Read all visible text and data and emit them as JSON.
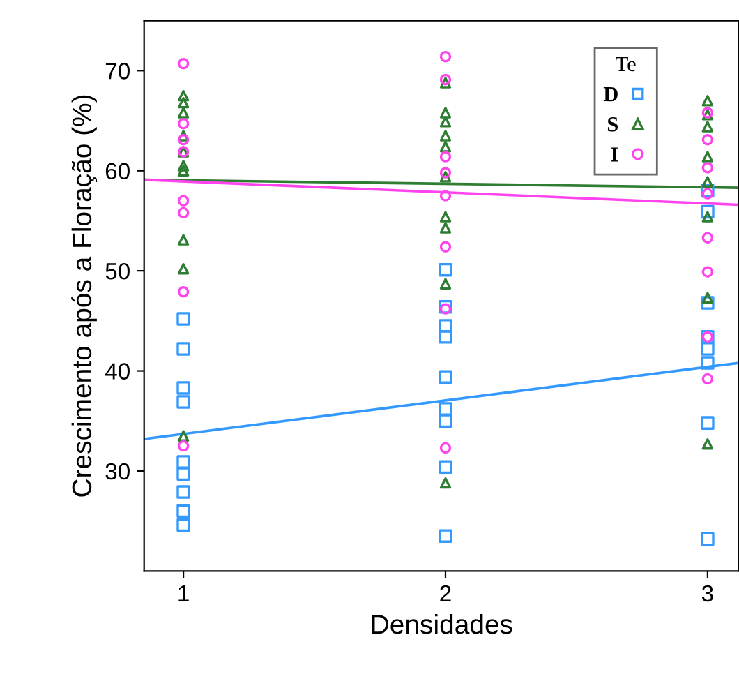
{
  "chart_data": {
    "type": "scatter",
    "xlabel": "Densidades",
    "ylabel": "Crescimento após a Floração (%)",
    "legend_title": "Te",
    "legend": "top right",
    "grid": false,
    "xlim": [
      0.85,
      3.12
    ],
    "xticks": [
      1,
      2,
      3
    ],
    "ylim": [
      20,
      75
    ],
    "yticks": [
      30,
      40,
      50,
      60,
      70
    ],
    "series": [
      {
        "name": "D",
        "marker": "square",
        "color": "#3399ff",
        "x": [
          1,
          1,
          1,
          1,
          1,
          1,
          1,
          1,
          1,
          2,
          2,
          2,
          2,
          2,
          2,
          2,
          2,
          2,
          3,
          3,
          3,
          3,
          3,
          3,
          3,
          3
        ],
        "values": [
          45.2,
          42.2,
          38.3,
          36.9,
          30.9,
          29.7,
          27.9,
          26.0,
          24.6,
          50.1,
          46.4,
          44.5,
          43.4,
          39.4,
          36.2,
          35.0,
          30.4,
          23.5,
          58.0,
          55.9,
          46.8,
          43.4,
          42.2,
          40.8,
          34.8,
          23.2
        ]
      },
      {
        "name": "S",
        "marker": "triangle",
        "color": "#2e7d32",
        "x": [
          1,
          1,
          1,
          1,
          1,
          1,
          1,
          1,
          1,
          1,
          2,
          2,
          2,
          2,
          2,
          2,
          2,
          2,
          2,
          2,
          3,
          3,
          3,
          3,
          3,
          3,
          3,
          3
        ],
        "values": [
          67.5,
          66.8,
          65.8,
          63.5,
          61.9,
          60.5,
          60.0,
          53.1,
          50.2,
          33.5,
          68.8,
          65.8,
          64.9,
          63.5,
          62.4,
          59.4,
          55.4,
          54.3,
          48.7,
          28.8,
          67.0,
          65.6,
          64.4,
          61.4,
          58.9,
          55.4,
          47.3,
          32.7
        ]
      },
      {
        "name": "I",
        "marker": "circle",
        "color": "#ff44ee",
        "x": [
          1,
          1,
          1,
          1,
          1,
          1,
          1,
          1,
          2,
          2,
          2,
          2,
          2,
          2,
          2,
          2,
          3,
          3,
          3,
          3,
          3,
          3,
          3,
          3
        ],
        "values": [
          70.7,
          64.7,
          63.1,
          61.9,
          57.0,
          55.8,
          47.9,
          32.5,
          71.4,
          69.1,
          61.4,
          59.8,
          57.5,
          52.4,
          46.2,
          32.3,
          65.8,
          63.1,
          60.3,
          57.7,
          53.3,
          49.9,
          43.4,
          39.2
        ]
      },
      {
        "type": "line",
        "color": "#3399ff",
        "x": [
          0.85,
          3.12
        ],
        "values": [
          33.2,
          40.8
        ]
      },
      {
        "type": "line",
        "color": "#2e7d32",
        "x": [
          0.85,
          3.12
        ],
        "values": [
          59.1,
          58.3
        ]
      },
      {
        "type": "line",
        "color": "#ff44ee",
        "x": [
          0.85,
          3.12
        ],
        "values": [
          59.1,
          56.6
        ]
      }
    ]
  }
}
